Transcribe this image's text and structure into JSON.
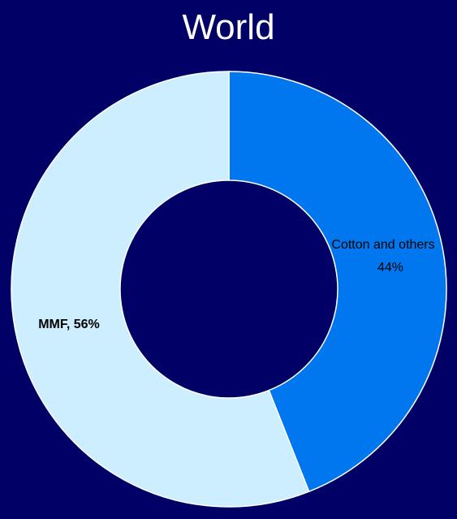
{
  "chart_data": {
    "type": "pie",
    "title": "World",
    "slices": [
      {
        "name": "Cotton and others",
        "value": 44,
        "value_label": "44%",
        "color": "#0077ee"
      },
      {
        "name": "MMF",
        "value": 56,
        "value_label": "MMF, 56%",
        "color": "#cceeff"
      }
    ],
    "background_color": "#000066",
    "legend": "none"
  }
}
